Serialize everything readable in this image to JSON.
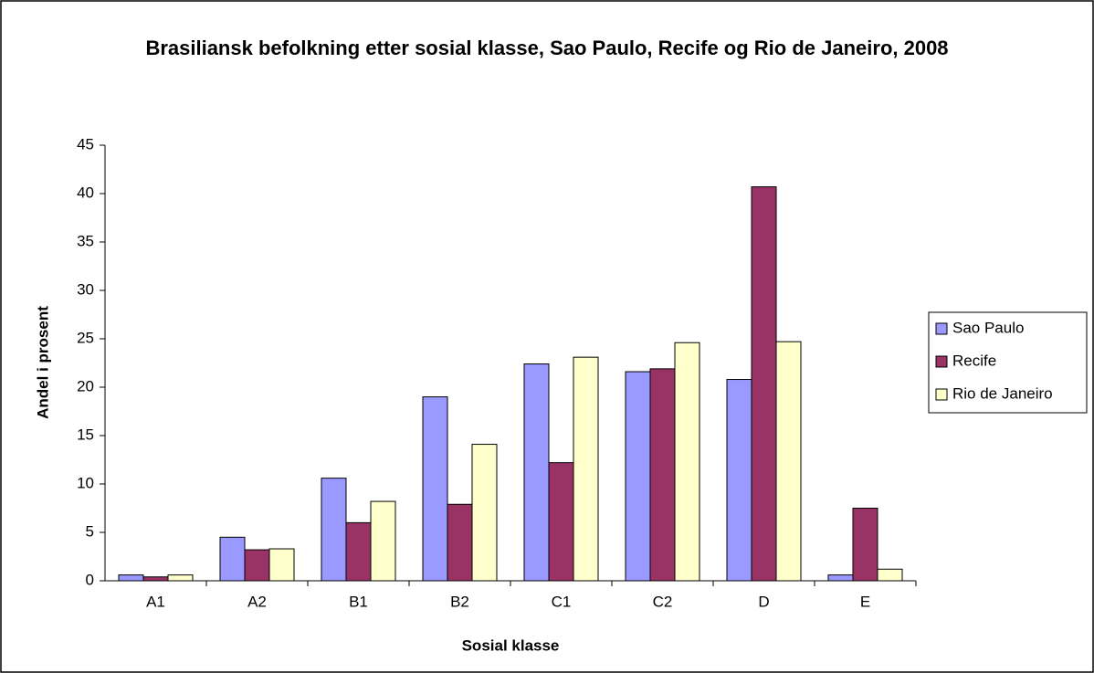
{
  "chart_data": {
    "type": "bar",
    "title": "Brasiliansk befolkning etter sosial klasse, Sao Paulo, Recife og Rio de Janeiro, 2008",
    "x_label": "Sosial klasse",
    "y_label": "Andel i prosent",
    "categories": [
      "A1",
      "A2",
      "B1",
      "B2",
      "C1",
      "C2",
      "D",
      "E"
    ],
    "series": [
      {
        "name": "Sao Paulo",
        "color": "#9999ff",
        "values": [
          0.6,
          4.5,
          10.6,
          19.0,
          22.4,
          21.6,
          20.8,
          0.6
        ]
      },
      {
        "name": "Recife",
        "color": "#993366",
        "values": [
          0.4,
          3.2,
          6.0,
          7.9,
          12.2,
          21.9,
          40.7,
          7.5
        ]
      },
      {
        "name": "Rio de Janeiro",
        "color": "#ffffcc",
        "values": [
          0.6,
          3.3,
          8.2,
          14.1,
          23.1,
          24.6,
          24.7,
          1.2
        ]
      }
    ],
    "ylim": [
      0,
      45
    ],
    "yticks": [
      0,
      5,
      10,
      15,
      20,
      25,
      30,
      35,
      40,
      45
    ],
    "grid": false,
    "legend": "right"
  }
}
